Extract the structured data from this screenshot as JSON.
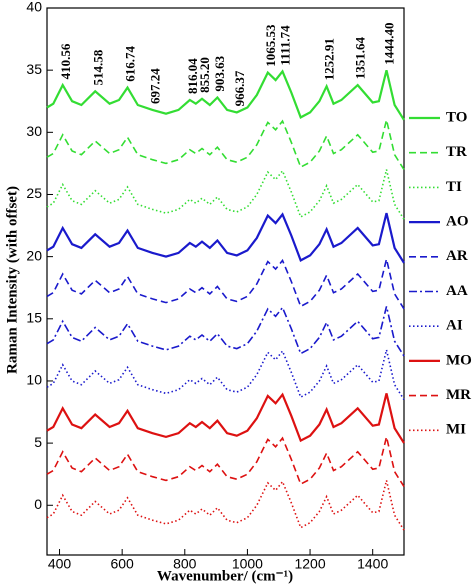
{
  "chart_data": {
    "type": "line",
    "xlabel": "Wavenumber/ (cm⁻¹)",
    "ylabel": "Raman Intensity (with offset)",
    "xlim": [
      360,
      1500
    ],
    "xticks": [
      400,
      600,
      800,
      1000,
      1200,
      1400
    ],
    "ylim": [
      -4,
      40
    ],
    "yticks": [
      0,
      5,
      10,
      15,
      20,
      25,
      30,
      35,
      40
    ],
    "legend": "right",
    "annotations": [
      {
        "x": 410.56,
        "text": "410.56"
      },
      {
        "x": 514.58,
        "text": "514.58"
      },
      {
        "x": 616.74,
        "text": "616.74"
      },
      {
        "x": 697.24,
        "text": "697.24"
      },
      {
        "x": 816.04,
        "text": "816.04"
      },
      {
        "x": 855.2,
        "text": "855.20"
      },
      {
        "x": 903.63,
        "text": "903.63"
      },
      {
        "x": 966.37,
        "text": "966.37"
      },
      {
        "x": 1065.53,
        "text": "1065.53"
      },
      {
        "x": 1111.74,
        "text": "1111.74"
      },
      {
        "x": 1252.91,
        "text": "1252.91"
      },
      {
        "x": 1351.64,
        "text": "1351.64"
      },
      {
        "x": 1444.4,
        "text": "1444.40"
      }
    ],
    "x": [
      360,
      380,
      410,
      440,
      470,
      514,
      560,
      590,
      617,
      650,
      697,
      740,
      780,
      816,
      835,
      855,
      880,
      904,
      935,
      966,
      1000,
      1030,
      1065,
      1090,
      1112,
      1140,
      1170,
      1200,
      1230,
      1253,
      1275,
      1300,
      1352,
      1400,
      1420,
      1444,
      1470,
      1500
    ],
    "series": [
      {
        "name": "TO",
        "color": "#33dd33",
        "dash": "solid",
        "values": [
          32.0,
          32.3,
          33.8,
          32.5,
          32.2,
          33.3,
          32.3,
          32.6,
          33.6,
          32.2,
          31.8,
          31.5,
          31.8,
          32.6,
          32.3,
          32.7,
          32.2,
          32.8,
          31.8,
          31.6,
          32.0,
          33.0,
          34.8,
          34.2,
          34.9,
          33.2,
          31.2,
          31.6,
          32.5,
          33.7,
          32.3,
          32.6,
          33.8,
          32.4,
          32.5,
          35.0,
          32.2,
          31.0
        ]
      },
      {
        "name": "TR",
        "color": "#33dd33",
        "dash": "dashed",
        "values": [
          28.0,
          28.3,
          29.8,
          28.5,
          28.2,
          29.3,
          28.3,
          28.6,
          29.6,
          28.2,
          27.8,
          27.5,
          27.8,
          28.6,
          28.3,
          28.7,
          28.2,
          28.8,
          27.8,
          27.6,
          28.0,
          29.0,
          30.8,
          30.2,
          30.9,
          29.2,
          27.2,
          27.6,
          28.5,
          29.7,
          28.3,
          28.6,
          29.8,
          28.4,
          28.5,
          31.0,
          28.2,
          27.0
        ]
      },
      {
        "name": "TI",
        "color": "#33dd33",
        "dash": "dotted",
        "values": [
          24.0,
          24.3,
          25.8,
          24.5,
          24.2,
          25.3,
          24.3,
          24.6,
          25.6,
          24.2,
          23.8,
          23.5,
          23.8,
          24.6,
          24.3,
          24.7,
          24.2,
          24.8,
          23.8,
          23.6,
          24.0,
          25.0,
          26.8,
          26.2,
          26.9,
          25.2,
          23.2,
          23.6,
          24.5,
          25.7,
          24.3,
          24.6,
          25.8,
          24.4,
          24.5,
          27.0,
          24.2,
          23.0
        ]
      },
      {
        "name": "AO",
        "color": "#1a1acc",
        "dash": "solid",
        "values": [
          20.5,
          20.8,
          22.3,
          21.0,
          20.7,
          21.8,
          20.8,
          21.1,
          22.1,
          20.7,
          20.3,
          20.0,
          20.3,
          21.1,
          20.8,
          21.2,
          20.7,
          21.3,
          20.3,
          20.1,
          20.5,
          21.5,
          23.3,
          22.7,
          23.4,
          21.7,
          19.7,
          20.1,
          21.0,
          22.2,
          20.8,
          21.1,
          22.3,
          20.9,
          21.0,
          23.5,
          20.7,
          19.5
        ]
      },
      {
        "name": "AR",
        "color": "#1a1acc",
        "dash": "dashed",
        "values": [
          16.8,
          17.1,
          18.6,
          17.3,
          17.0,
          18.1,
          17.1,
          17.4,
          18.4,
          17.0,
          16.6,
          16.3,
          16.6,
          17.4,
          17.1,
          17.5,
          17.0,
          17.6,
          16.6,
          16.4,
          16.8,
          17.8,
          19.6,
          19.0,
          19.7,
          18.0,
          16.0,
          16.4,
          17.3,
          18.5,
          17.1,
          17.4,
          18.6,
          17.2,
          17.3,
          19.8,
          17.0,
          15.8
        ]
      },
      {
        "name": "AA",
        "color": "#1a1acc",
        "dash": "dashdot",
        "values": [
          13.0,
          13.3,
          14.8,
          13.5,
          13.2,
          14.3,
          13.3,
          13.6,
          14.6,
          13.2,
          12.8,
          12.5,
          12.8,
          13.6,
          13.3,
          13.7,
          13.2,
          13.8,
          12.8,
          12.6,
          13.0,
          14.0,
          15.8,
          15.2,
          15.9,
          14.2,
          12.2,
          12.6,
          13.5,
          14.7,
          13.3,
          13.6,
          14.8,
          13.4,
          13.5,
          16.0,
          13.2,
          12.0
        ]
      },
      {
        "name": "AI",
        "color": "#1a1acc",
        "dash": "dotted",
        "values": [
          9.5,
          9.8,
          11.3,
          10.0,
          9.7,
          10.8,
          9.8,
          10.1,
          11.1,
          9.7,
          9.3,
          9.0,
          9.3,
          10.1,
          9.8,
          10.2,
          9.7,
          10.3,
          9.3,
          9.1,
          9.5,
          10.5,
          12.3,
          11.7,
          12.4,
          10.7,
          8.7,
          9.1,
          10.0,
          11.2,
          9.8,
          10.1,
          11.3,
          9.9,
          10.0,
          12.5,
          9.7,
          8.5
        ]
      },
      {
        "name": "MO",
        "color": "#dd1111",
        "dash": "solid",
        "values": [
          6.0,
          6.3,
          7.8,
          6.5,
          6.2,
          7.3,
          6.3,
          6.6,
          7.6,
          6.2,
          5.8,
          5.5,
          5.8,
          6.6,
          6.3,
          6.7,
          6.2,
          6.8,
          5.8,
          5.6,
          6.0,
          7.0,
          8.8,
          8.2,
          8.9,
          7.2,
          5.2,
          5.6,
          6.5,
          7.7,
          6.3,
          6.6,
          7.8,
          6.4,
          6.5,
          9.0,
          6.2,
          5.0
        ]
      },
      {
        "name": "MR",
        "color": "#dd1111",
        "dash": "dashed",
        "values": [
          2.5,
          2.8,
          4.3,
          3.0,
          2.7,
          3.8,
          2.8,
          3.1,
          4.1,
          2.7,
          2.3,
          2.0,
          2.3,
          3.1,
          2.8,
          3.2,
          2.7,
          3.3,
          2.3,
          2.1,
          2.5,
          3.5,
          5.3,
          4.7,
          5.4,
          3.7,
          1.7,
          2.1,
          3.0,
          4.2,
          2.8,
          3.1,
          4.3,
          2.9,
          3.0,
          5.5,
          2.7,
          1.5
        ]
      },
      {
        "name": "MI",
        "color": "#dd1111",
        "dash": "dotted",
        "values": [
          -1.0,
          -0.7,
          0.8,
          -0.5,
          -0.8,
          0.3,
          -0.7,
          -0.4,
          0.6,
          -0.8,
          -1.2,
          -1.5,
          -1.2,
          -0.4,
          -0.7,
          -0.3,
          -0.8,
          -0.2,
          -1.2,
          -1.4,
          -1.0,
          0.0,
          1.8,
          1.2,
          1.9,
          0.2,
          -1.8,
          -1.4,
          -0.5,
          0.7,
          -0.7,
          -0.4,
          0.8,
          -0.6,
          -0.5,
          2.0,
          -0.8,
          -2.0
        ]
      }
    ]
  }
}
